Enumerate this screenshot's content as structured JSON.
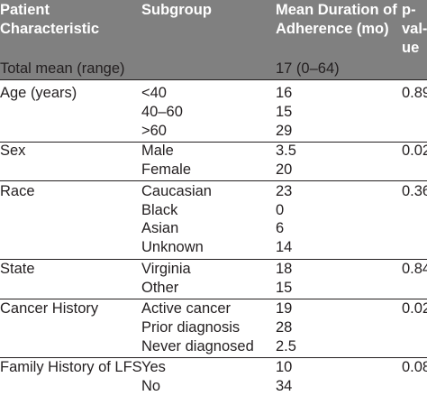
{
  "table": {
    "headers": {
      "characteristic": [
        "Patient",
        "Characteristic"
      ],
      "subgroup": "Subgroup",
      "duration": [
        "Mean Duration of",
        "Adherence (mo)"
      ],
      "pvalue": [
        "p-",
        "val-",
        "ue"
      ]
    },
    "total": {
      "label": "Total mean (range)",
      "value": "17 (0–64)"
    },
    "groups": [
      {
        "label": "Age (years)",
        "p": "0.89",
        "rows": [
          {
            "subgroup": "<40",
            "value": "16"
          },
          {
            "subgroup": "40–60",
            "value": "15"
          },
          {
            "subgroup": ">60",
            "value": "29"
          }
        ]
      },
      {
        "label": "Sex",
        "p": "0.02",
        "rows": [
          {
            "subgroup": "Male",
            "value": "3.5"
          },
          {
            "subgroup": "Female",
            "value": "20"
          }
        ]
      },
      {
        "label": "Race",
        "p": "0.36",
        "rows": [
          {
            "subgroup": "Caucasian",
            "value": "23"
          },
          {
            "subgroup": "Black",
            "value": "0"
          },
          {
            "subgroup": "Asian",
            "value": "6"
          },
          {
            "subgroup": "Unknown",
            "value": "14"
          }
        ]
      },
      {
        "label": "State",
        "p": "0.84",
        "rows": [
          {
            "subgroup": "Virginia",
            "value": "18"
          },
          {
            "subgroup": "Other",
            "value": "15"
          }
        ]
      },
      {
        "label": "Cancer History",
        "p": "0.02",
        "rows": [
          {
            "subgroup": "Active cancer",
            "value": "19"
          },
          {
            "subgroup": "Prior diagnosis",
            "value": "28"
          },
          {
            "subgroup": "Never diagnosed",
            "value": "2.5"
          }
        ]
      },
      {
        "label": "Family History of LFS",
        "p": "0.08",
        "rows": [
          {
            "subgroup": "Yes",
            "value": "10"
          },
          {
            "subgroup": "No",
            "value": "34"
          }
        ]
      }
    ]
  }
}
